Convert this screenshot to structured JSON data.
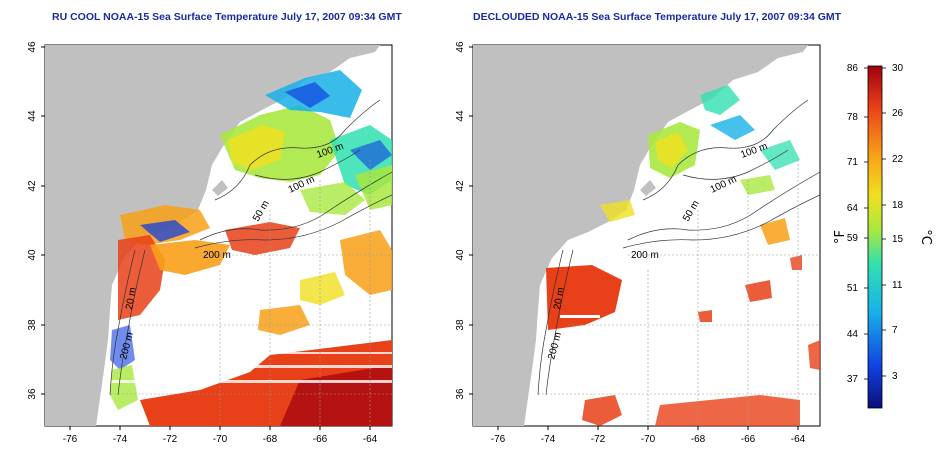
{
  "panels": [
    {
      "title": "RU COOL NOAA-15 Sea Surface Temperature July 17, 2007 09:34 GMT",
      "isobaths": [
        "100 m",
        "100 m",
        "50 m",
        "200 m",
        "20 m",
        "200 m"
      ]
    },
    {
      "title": "DECLOUDED NOAA-15 Sea Surface Temperature July 17, 2007 09:34 GMT",
      "isobaths": [
        "100 m",
        "100 m",
        "50 m",
        "200 m",
        "20 m",
        "200 m"
      ]
    }
  ],
  "axes": {
    "x_ticks": [
      "-76",
      "-74",
      "-72",
      "-70",
      "-68",
      "-66",
      "-64"
    ],
    "y_ticks": [
      "36",
      "38",
      "40",
      "42",
      "44",
      "46"
    ],
    "xlim": [
      -77,
      -63
    ],
    "ylim": [
      35,
      46
    ]
  },
  "colorbar": {
    "f_ticks": [
      "86",
      "78",
      "71",
      "64",
      "59",
      "51",
      "44",
      "37"
    ],
    "c_ticks": [
      "30",
      "26",
      "22",
      "18",
      "15",
      "11",
      "7",
      "3"
    ],
    "left_unit": "°F",
    "right_unit": "°C",
    "colors": [
      "#0a0f7a",
      "#1040e0",
      "#18b0e8",
      "#30e0b0",
      "#a8e840",
      "#f0e020",
      "#f8a018",
      "#e84018",
      "#a00010"
    ]
  },
  "colors": {
    "land": "#c0c0c0",
    "title": "#1a2aa0",
    "grid": "#9a9a9a"
  }
}
